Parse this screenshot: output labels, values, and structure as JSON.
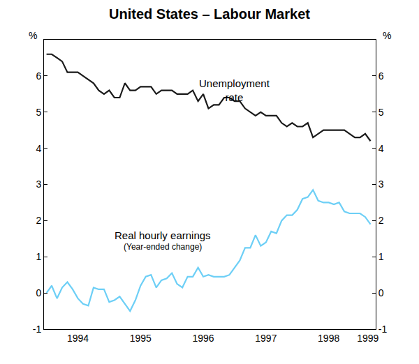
{
  "chart_data": {
    "type": "line",
    "title": "United States – Labour Market",
    "ylabel": "%",
    "x": [
      1994.0,
      1994.083,
      1994.167,
      1994.25,
      1994.333,
      1994.417,
      1994.5,
      1994.583,
      1994.667,
      1994.75,
      1994.833,
      1994.917,
      1995.0,
      1995.083,
      1995.167,
      1995.25,
      1995.333,
      1995.417,
      1995.5,
      1995.583,
      1995.667,
      1995.75,
      1995.833,
      1995.917,
      1996.0,
      1996.083,
      1996.167,
      1996.25,
      1996.333,
      1996.417,
      1996.5,
      1996.583,
      1996.667,
      1996.75,
      1996.833,
      1996.917,
      1997.0,
      1997.083,
      1997.167,
      1997.25,
      1997.333,
      1997.417,
      1997.5,
      1997.583,
      1997.667,
      1997.75,
      1997.833,
      1997.917,
      1998.0,
      1998.083,
      1998.167,
      1998.25,
      1998.333,
      1998.417,
      1998.5,
      1998.583,
      1998.667,
      1998.75,
      1998.833,
      1998.917,
      1999.0,
      1999.083,
      1999.167
    ],
    "series": [
      {
        "name": "Unemployment rate",
        "color": "#1a1a1a",
        "values": [
          6.6,
          6.6,
          6.5,
          6.4,
          6.1,
          6.1,
          6.1,
          6.0,
          5.9,
          5.8,
          5.6,
          5.5,
          5.6,
          5.4,
          5.4,
          5.8,
          5.6,
          5.6,
          5.7,
          5.7,
          5.7,
          5.5,
          5.6,
          5.6,
          5.6,
          5.5,
          5.5,
          5.5,
          5.6,
          5.3,
          5.5,
          5.1,
          5.2,
          5.2,
          5.4,
          5.4,
          5.3,
          5.3,
          5.1,
          5.0,
          4.9,
          5.0,
          4.9,
          4.9,
          4.9,
          4.7,
          4.6,
          4.7,
          4.6,
          4.6,
          4.7,
          4.3,
          4.4,
          4.5,
          4.5,
          4.5,
          4.5,
          4.5,
          4.4,
          4.3,
          4.3,
          4.4,
          4.2
        ]
      },
      {
        "name": "Real hourly earnings",
        "color": "#6dcff6",
        "values": [
          0.0,
          0.2,
          -0.15,
          0.15,
          0.3,
          0.1,
          -0.15,
          -0.3,
          -0.35,
          0.15,
          0.1,
          0.1,
          -0.25,
          -0.2,
          -0.1,
          -0.3,
          -0.5,
          -0.2,
          0.2,
          0.45,
          0.5,
          0.15,
          0.35,
          0.4,
          0.55,
          0.25,
          0.15,
          0.45,
          0.45,
          0.7,
          0.45,
          0.5,
          0.45,
          0.45,
          0.45,
          0.5,
          0.7,
          0.9,
          1.25,
          1.25,
          1.6,
          1.3,
          1.4,
          1.7,
          1.65,
          2.0,
          2.15,
          2.15,
          2.3,
          2.6,
          2.65,
          2.85,
          2.55,
          2.5,
          2.5,
          2.45,
          2.5,
          2.25,
          2.2,
          2.2,
          2.2,
          2.1,
          1.9
        ]
      }
    ],
    "annotations": [
      {
        "lines": [
          "Unemployment",
          "rate"
        ],
        "x": 1997.0,
        "y": 5.6
      },
      {
        "lines": [
          "Real hourly earnings"
        ],
        "x": 1995.85,
        "y": 1.6
      },
      {
        "lines": [
          "(Year-ended change)"
        ],
        "x": 1995.85,
        "y": 1.27
      }
    ],
    "xlim": [
      1993.96,
      1999.25
    ],
    "xticks": [
      {
        "value": 1994.5,
        "label": "1994"
      },
      {
        "value": 1995.5,
        "label": "1995"
      },
      {
        "value": 1996.5,
        "label": "1996"
      },
      {
        "value": 1997.5,
        "label": "1997"
      },
      {
        "value": 1998.5,
        "label": "1998"
      },
      {
        "value": 1999.125,
        "label": "1999"
      }
    ],
    "ylim": [
      -1,
      7
    ],
    "yticks": [
      -1,
      0,
      1,
      2,
      3,
      4,
      5,
      6
    ],
    "grid": false
  }
}
